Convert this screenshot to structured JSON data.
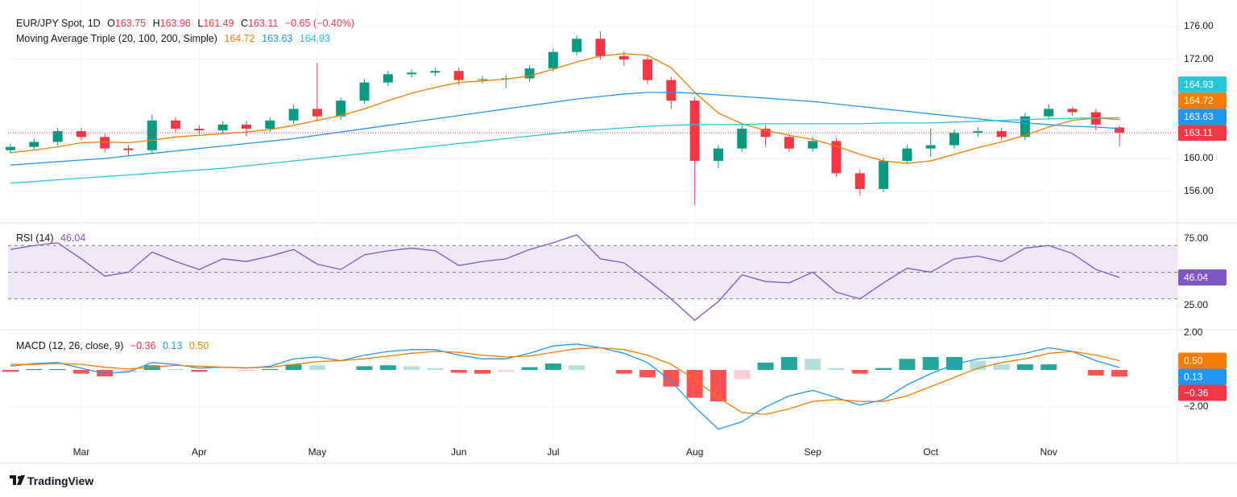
{
  "chart_data": [
    {
      "type": "candlestick",
      "title": "EUR/JPY Spot, 1D",
      "ohlc_letters": [
        "O",
        "H",
        "L",
        "C"
      ],
      "change_label": "−0.65 (−0.40%)",
      "categories": [
        null,
        null,
        null,
        "Mar",
        null,
        null,
        null,
        null,
        "Apr",
        null,
        null,
        null,
        null,
        "May",
        null,
        null,
        null,
        null,
        null,
        "Jun",
        null,
        null,
        null,
        "Jul",
        null,
        null,
        null,
        null,
        null,
        "Aug",
        null,
        null,
        null,
        null,
        "Sep",
        null,
        null,
        null,
        null,
        "Oct",
        null,
        null,
        null,
        null,
        "Nov",
        null,
        null,
        null
      ],
      "open": [
        161.0,
        161.4,
        162.0,
        163.3,
        162.6,
        161.2,
        161.0,
        164.6,
        163.6,
        163.4,
        164.1,
        163.6,
        164.6,
        166.0,
        165.1,
        167.0,
        169.2,
        170.2,
        170.4,
        170.6,
        169.5,
        169.6,
        169.7,
        170.9,
        172.9,
        174.5,
        172.4,
        172.0,
        169.5,
        167.0,
        159.7,
        161.2,
        163.6,
        162.6,
        161.2,
        162.1,
        158.2,
        156.3,
        159.7,
        161.2,
        161.6,
        163.1,
        163.3,
        162.6,
        165.1,
        166.0,
        165.6,
        163.75
      ],
      "high": [
        161.8,
        162.4,
        163.7,
        163.7,
        163.0,
        161.6,
        165.3,
        165.0,
        164.0,
        164.5,
        164.5,
        165.0,
        166.5,
        171.6,
        167.4,
        169.6,
        170.6,
        170.8,
        171.0,
        171.0,
        170.0,
        170.1,
        171.3,
        173.3,
        174.9,
        175.4,
        173.0,
        172.4,
        169.9,
        167.4,
        161.6,
        164.0,
        164.0,
        163.0,
        162.6,
        162.5,
        158.6,
        160.1,
        161.6,
        163.6,
        163.5,
        163.8,
        163.7,
        165.5,
        166.6,
        166.2,
        166.0,
        163.96
      ],
      "low": [
        160.6,
        161.0,
        161.6,
        162.2,
        160.8,
        160.3,
        160.6,
        163.2,
        162.9,
        163.0,
        162.7,
        163.2,
        164.2,
        164.5,
        164.7,
        166.6,
        168.8,
        169.8,
        170.0,
        168.9,
        169.1,
        168.5,
        169.3,
        170.5,
        172.5,
        172.0,
        171.2,
        169.0,
        166.0,
        154.4,
        158.8,
        160.8,
        161.5,
        160.8,
        160.8,
        157.8,
        155.5,
        155.9,
        159.3,
        160.2,
        161.2,
        162.6,
        162.2,
        162.2,
        164.7,
        165.2,
        163.4,
        161.49
      ],
      "close": [
        161.4,
        162.0,
        163.3,
        162.6,
        161.2,
        161.0,
        164.6,
        163.6,
        163.4,
        164.1,
        163.6,
        164.6,
        166.0,
        165.1,
        167.0,
        169.2,
        170.2,
        170.4,
        170.6,
        169.5,
        169.6,
        169.7,
        170.9,
        172.9,
        174.5,
        172.4,
        172.0,
        169.5,
        167.0,
        159.7,
        161.2,
        163.6,
        162.6,
        161.2,
        162.1,
        158.2,
        156.3,
        159.7,
        161.2,
        161.6,
        163.1,
        163.3,
        162.6,
        165.1,
        166.0,
        165.6,
        164.1,
        163.11
      ],
      "up_color": "#089981",
      "down_color": "#f23645",
      "last_price_line": true,
      "ylim": [
        152.2,
        179.2
      ],
      "yticks": [
        {
          "value": 176,
          "label": "176.00"
        },
        {
          "value": 172,
          "label": "172.00"
        },
        {
          "value": 160,
          "label": "160.00"
        },
        {
          "value": 156,
          "label": "156.00"
        }
      ],
      "overlay_title": "Moving Average Triple (20, 100, 200, Simple)",
      "series": [
        {
          "color": "#f57c00",
          "values": [
            160.7,
            161.0,
            161.4,
            161.9,
            162.0,
            161.9,
            162.2,
            162.6,
            162.8,
            163.0,
            163.2,
            163.5,
            164.0,
            164.6,
            165.2,
            166.0,
            167.0,
            167.9,
            168.6,
            169.2,
            169.4,
            169.6,
            170.0,
            170.8,
            171.7,
            172.4,
            172.7,
            172.5,
            171.0,
            168.0,
            165.5,
            164.2,
            163.4,
            162.8,
            162.3,
            161.5,
            160.5,
            159.7,
            159.4,
            159.7,
            160.5,
            161.3,
            162.0,
            162.8,
            163.8,
            164.6,
            164.9,
            164.72
          ]
        },
        {
          "color": "#2196f3",
          "values": [
            159.2,
            159.4,
            159.6,
            159.8,
            160.0,
            160.3,
            160.6,
            160.9,
            161.2,
            161.5,
            161.8,
            162.1,
            162.4,
            162.8,
            163.2,
            163.6,
            164.0,
            164.4,
            164.8,
            165.2,
            165.6,
            166.0,
            166.4,
            166.8,
            167.2,
            167.5,
            167.8,
            168.0,
            168.0,
            167.9,
            167.7,
            167.5,
            167.3,
            167.1,
            166.9,
            166.6,
            166.3,
            166.0,
            165.7,
            165.4,
            165.1,
            164.8,
            164.5,
            164.3,
            164.1,
            163.9,
            163.8,
            163.63
          ]
        },
        {
          "color": "#26c6da",
          "values": [
            157.0,
            157.2,
            157.4,
            157.6,
            157.8,
            158.0,
            158.2,
            158.4,
            158.6,
            158.8,
            159.1,
            159.4,
            159.7,
            160.0,
            160.3,
            160.6,
            160.9,
            161.2,
            161.5,
            161.8,
            162.1,
            162.4,
            162.7,
            163.0,
            163.3,
            163.5,
            163.7,
            163.9,
            164.0,
            164.1,
            164.1,
            164.1,
            164.2,
            164.2,
            164.2,
            164.2,
            164.2,
            164.3,
            164.3,
            164.3,
            164.4,
            164.5,
            164.6,
            164.7,
            164.8,
            164.85,
            164.9,
            164.93
          ]
        }
      ]
    },
    {
      "type": "line",
      "title": "RSI (14)",
      "color": "#7e57c2",
      "values": [
        67,
        70,
        72,
        60,
        47,
        50,
        65,
        58,
        52,
        60,
        58,
        62,
        67,
        56,
        52,
        63,
        66,
        68,
        66,
        55,
        58,
        60,
        67,
        72,
        78,
        60,
        57,
        44,
        30,
        14,
        28,
        48,
        43,
        42,
        50,
        35,
        30,
        42,
        53,
        50,
        60,
        62,
        58,
        68,
        70,
        64,
        52,
        46.04
      ],
      "ylim": [
        6.9,
        86.4
      ],
      "yticks": [
        {
          "value": 75,
          "label": "75.00"
        },
        {
          "value": 25,
          "label": "25.00"
        }
      ],
      "bands": [
        30,
        50,
        70
      ],
      "band_fill": "#ede7f6"
    },
    {
      "type": "macd",
      "title": "MACD (12, 26, close, 9)",
      "histogram": {
        "values": [
          -0.1,
          0.05,
          0.05,
          -0.2,
          -0.35,
          -0.15,
          0.25,
          0.05,
          -0.1,
          0,
          -0.02,
          0.05,
          0.3,
          0.25,
          0,
          0.2,
          0.25,
          0.2,
          0.1,
          -0.15,
          -0.2,
          -0.1,
          0.15,
          0.35,
          0.25,
          0,
          -0.2,
          -0.4,
          -0.9,
          -1.5,
          -1.7,
          -0.5,
          0.4,
          0.7,
          0.6,
          0.1,
          -0.2,
          0.1,
          0.6,
          0.7,
          0.7,
          0.5,
          0.3,
          0.3,
          0.3,
          0,
          -0.3,
          -0.36
        ],
        "last_label": "−0.36",
        "badge_color": "#f23645",
        "colors": [
          "#26a69a",
          "#b2dfdb",
          "#ff5252",
          "#ffcdd2"
        ]
      },
      "series": [
        {
          "color": "#2196f3",
          "last_label": "0.13",
          "values": [
            0.2,
            0.35,
            0.4,
            0.1,
            -0.2,
            -0.1,
            0.4,
            0.3,
            0.1,
            0.15,
            0.1,
            0.2,
            0.6,
            0.7,
            0.5,
            0.8,
            1.0,
            1.1,
            1.1,
            0.8,
            0.6,
            0.6,
            0.9,
            1.3,
            1.4,
            1.2,
            0.9,
            0.4,
            -0.6,
            -2.0,
            -3.2,
            -2.8,
            -2.0,
            -1.4,
            -1.1,
            -1.5,
            -1.9,
            -1.6,
            -0.8,
            -0.2,
            0.3,
            0.6,
            0.7,
            0.9,
            1.2,
            1.0,
            0.5,
            0.13
          ]
        },
        {
          "color": "#f57c00",
          "last_label": "0.50",
          "values": [
            0.3,
            0.3,
            0.35,
            0.3,
            0.15,
            0.05,
            0.15,
            0.25,
            0.2,
            0.15,
            0.12,
            0.15,
            0.3,
            0.45,
            0.5,
            0.6,
            0.75,
            0.9,
            1.0,
            0.95,
            0.8,
            0.7,
            0.75,
            0.95,
            1.15,
            1.2,
            1.1,
            0.8,
            0.3,
            -0.5,
            -1.5,
            -2.3,
            -2.4,
            -2.1,
            -1.7,
            -1.6,
            -1.7,
            -1.7,
            -1.4,
            -0.9,
            -0.4,
            0.1,
            0.4,
            0.6,
            0.9,
            1.0,
            0.8,
            0.5
          ]
        }
      ],
      "ylim": [
        -5.04,
        2.13
      ],
      "yticks": [
        {
          "value": 2,
          "label": "2.00"
        },
        {
          "value": -2,
          "label": "−2.00"
        }
      ]
    }
  ],
  "brand": "TradingView"
}
